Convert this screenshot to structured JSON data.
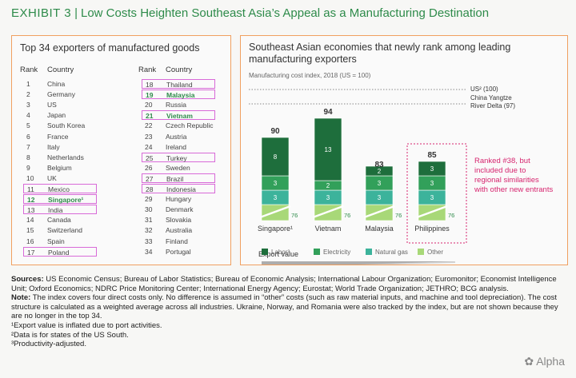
{
  "exhibit": {
    "label": "Exhibit 3",
    "title": "Low Costs Heighten Southeast Asia’s Appeal as a Manufacturing Destination"
  },
  "left": {
    "title": "Top 34 exporters of manufactured goods",
    "rank_header": "Rank",
    "country_header": "Country",
    "col1": [
      {
        "rank": "1",
        "country": "China",
        "hl": false,
        "green": false
      },
      {
        "rank": "2",
        "country": "Germany",
        "hl": false,
        "green": false
      },
      {
        "rank": "3",
        "country": "US",
        "hl": false,
        "green": false
      },
      {
        "rank": "4",
        "country": "Japan",
        "hl": false,
        "green": false
      },
      {
        "rank": "5",
        "country": "South Korea",
        "hl": false,
        "green": false
      },
      {
        "rank": "6",
        "country": "France",
        "hl": false,
        "green": false
      },
      {
        "rank": "7",
        "country": "Italy",
        "hl": false,
        "green": false
      },
      {
        "rank": "8",
        "country": "Netherlands",
        "hl": false,
        "green": false
      },
      {
        "rank": "9",
        "country": "Belgium",
        "hl": false,
        "green": false
      },
      {
        "rank": "10",
        "country": "UK",
        "hl": false,
        "green": false
      },
      {
        "rank": "11",
        "country": "Mexico",
        "hl": true,
        "green": false
      },
      {
        "rank": "12",
        "country": "Singapore¹",
        "hl": true,
        "green": true
      },
      {
        "rank": "13",
        "country": "India",
        "hl": true,
        "green": false
      },
      {
        "rank": "14",
        "country": "Canada",
        "hl": false,
        "green": false
      },
      {
        "rank": "15",
        "country": "Switzerland",
        "hl": false,
        "green": false
      },
      {
        "rank": "16",
        "country": "Spain",
        "hl": false,
        "green": false
      },
      {
        "rank": "17",
        "country": "Poland",
        "hl": true,
        "green": false
      }
    ],
    "col2": [
      {
        "rank": "18",
        "country": "Thailand",
        "hl": true,
        "green": false
      },
      {
        "rank": "19",
        "country": "Malaysia",
        "hl": true,
        "green": true
      },
      {
        "rank": "20",
        "country": "Russia",
        "hl": false,
        "green": false
      },
      {
        "rank": "21",
        "country": "Vietnam",
        "hl": true,
        "green": true
      },
      {
        "rank": "22",
        "country": "Czech Republic",
        "hl": false,
        "green": false
      },
      {
        "rank": "23",
        "country": "Austria",
        "hl": false,
        "green": false
      },
      {
        "rank": "24",
        "country": "Ireland",
        "hl": false,
        "green": false
      },
      {
        "rank": "25",
        "country": "Turkey",
        "hl": true,
        "green": false
      },
      {
        "rank": "26",
        "country": "Sweden",
        "hl": false,
        "green": false
      },
      {
        "rank": "27",
        "country": "Brazil",
        "hl": true,
        "green": false
      },
      {
        "rank": "28",
        "country": "Indonesia",
        "hl": true,
        "green": false
      },
      {
        "rank": "29",
        "country": "Hungary",
        "hl": false,
        "green": false
      },
      {
        "rank": "30",
        "country": "Denmark",
        "hl": false,
        "green": false
      },
      {
        "rank": "31",
        "country": "Slovakia",
        "hl": false,
        "green": false
      },
      {
        "rank": "32",
        "country": "Australia",
        "hl": false,
        "green": false
      },
      {
        "rank": "33",
        "country": "Finland",
        "hl": false,
        "green": false
      },
      {
        "rank": "34",
        "country": "Portugal",
        "hl": false,
        "green": false
      }
    ]
  },
  "right": {
    "title": "Southeast Asian economies that newly rank among leading manufacturing exporters",
    "subtitle": "Manufacturing cost index, 2018 (US = 100)",
    "ref_us": "US² (100)",
    "ref_china_1": "China Yangtze",
    "ref_china_2": "River Delta (97)",
    "annotation_1": "Ranked #38, but",
    "annotation_2": "included due to",
    "annotation_3": "regional similarities",
    "annotation_4": "with other new entrants",
    "export_value_label": "Export value",
    "legend": [
      {
        "label": "Labor³",
        "color": "#1e6e3c"
      },
      {
        "label": "Electricity",
        "color": "#32a05a"
      },
      {
        "label": "Natural gas",
        "color": "#3cb39b"
      },
      {
        "label": "Other",
        "color": "#a8d878"
      }
    ]
  },
  "chart_data": {
    "type": "bar",
    "stacked": true,
    "title": "Southeast Asian economies that newly rank among leading manufacturing exporters",
    "ylabel": "Manufacturing cost index, 2018 (US = 100)",
    "categories": [
      "Singapore¹",
      "Vietnam",
      "Malaysia",
      "Philippines"
    ],
    "series": [
      {
        "name": "Other",
        "values": [
          76,
          76,
          76,
          76
        ]
      },
      {
        "name": "Natural gas",
        "values": [
          3,
          3,
          3,
          3
        ]
      },
      {
        "name": "Electricity",
        "values": [
          3,
          2,
          3,
          3
        ]
      },
      {
        "name": "Labor³",
        "values": [
          8,
          13,
          2,
          3
        ]
      }
    ],
    "totals": [
      90,
      94,
      83,
      85
    ],
    "reference_lines": [
      {
        "label": "US² (100)",
        "value": 100
      },
      {
        "label": "China Yangtze River Delta (97)",
        "value": 97
      }
    ],
    "highlighted_category": "Philippines",
    "axis_break": true
  },
  "notes": {
    "sources_label": "Sources:",
    "sources_text": " US Economic Census; Bureau of Labor Statistics; Bureau of Economic Analysis; International Labour Organization; Euromonitor; Economist Intelligence Unit; Oxford Economics; NDRC Price Monitoring Center; International Energy Agency; Eurostat; World Trade Organization; JETHRO; BCG analysis.",
    "note_label": "Note:",
    "note_text": " The index covers four direct costs only. No difference is assumed in “other” costs (such as raw material inputs, and machine and tool depreciation). The cost structure is calculated as a weighted average across all industries. Ukraine, Norway, and Romania were also tracked by the index, but are not shown because they are no longer in the top 34.",
    "fn1": "¹Export value is inflated due to port activities.",
    "fn2": "²Data is for states of the US South.",
    "fn3": "³Productivity-adjusted."
  },
  "watermark": "Alpha"
}
